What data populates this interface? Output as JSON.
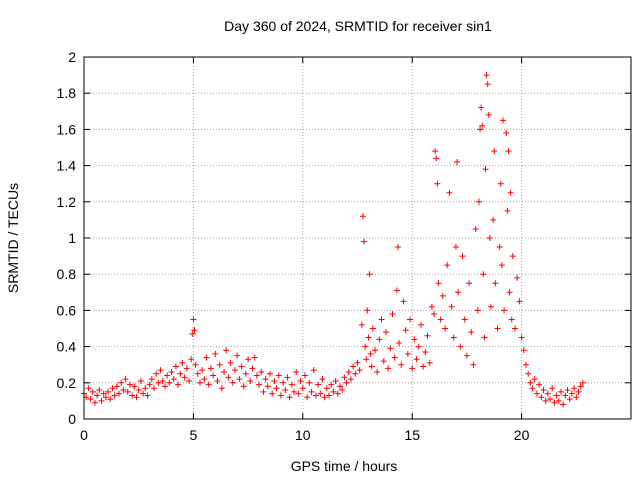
{
  "chart_data": {
    "type": "scatter",
    "title": "Day 360 of 2024, SRMTID for receiver sin1",
    "xlabel": "GPS time / hours",
    "ylabel": "SRMTID / TECUs",
    "xlim": [
      0,
      25
    ],
    "ylim": [
      0,
      2
    ],
    "xticks": [
      0,
      5,
      10,
      15,
      20
    ],
    "xtick_labels": [
      "0",
      "5",
      "10",
      "15",
      "20"
    ],
    "yticks": [
      0,
      0.2,
      0.4,
      0.6,
      0.8,
      1.0,
      1.2,
      1.4,
      1.6,
      1.8,
      2.0
    ],
    "ytick_labels": [
      "0",
      "0.2",
      "0.4",
      "0.6",
      "0.8",
      "1",
      "1.2",
      "1.4",
      "1.6",
      "1.8",
      "2"
    ],
    "grid": true,
    "marker": "plus",
    "color": "#ff0000",
    "series": [
      {
        "name": "sin1",
        "points": [
          [
            0.0,
            0.14
          ],
          [
            0.1,
            0.12
          ],
          [
            0.2,
            0.17
          ],
          [
            0.3,
            0.11
          ],
          [
            0.4,
            0.15
          ],
          [
            0.5,
            0.09
          ],
          [
            0.6,
            0.13
          ],
          [
            0.7,
            0.16
          ],
          [
            0.8,
            0.1
          ],
          [
            0.9,
            0.14
          ],
          [
            1.0,
            0.12
          ],
          [
            1.1,
            0.15
          ],
          [
            1.2,
            0.11
          ],
          [
            1.3,
            0.17
          ],
          [
            1.4,
            0.13
          ],
          [
            1.5,
            0.18
          ],
          [
            1.6,
            0.14
          ],
          [
            1.7,
            0.2
          ],
          [
            1.8,
            0.16
          ],
          [
            1.9,
            0.22
          ],
          [
            2.0,
            0.15
          ],
          [
            2.1,
            0.19
          ],
          [
            2.2,
            0.13
          ],
          [
            2.3,
            0.18
          ],
          [
            2.4,
            0.12
          ],
          [
            2.5,
            0.16
          ],
          [
            2.6,
            0.21
          ],
          [
            2.7,
            0.14
          ],
          [
            2.8,
            0.17
          ],
          [
            2.9,
            0.13
          ],
          [
            3.0,
            0.19
          ],
          [
            3.1,
            0.22
          ],
          [
            3.2,
            0.17
          ],
          [
            3.3,
            0.25
          ],
          [
            3.4,
            0.2
          ],
          [
            3.5,
            0.27
          ],
          [
            3.6,
            0.21
          ],
          [
            3.7,
            0.18
          ],
          [
            3.8,
            0.24
          ],
          [
            3.9,
            0.2
          ],
          [
            4.0,
            0.26
          ],
          [
            4.1,
            0.22
          ],
          [
            4.2,
            0.29
          ],
          [
            4.3,
            0.19
          ],
          [
            4.4,
            0.25
          ],
          [
            4.5,
            0.31
          ],
          [
            4.6,
            0.23
          ],
          [
            4.7,
            0.28
          ],
          [
            4.8,
            0.21
          ],
          [
            4.9,
            0.33
          ],
          [
            4.95,
            0.47
          ],
          [
            5.0,
            0.55
          ],
          [
            5.05,
            0.49
          ],
          [
            5.1,
            0.3
          ],
          [
            5.2,
            0.25
          ],
          [
            5.3,
            0.2
          ],
          [
            5.4,
            0.27
          ],
          [
            5.5,
            0.22
          ],
          [
            5.6,
            0.34
          ],
          [
            5.7,
            0.19
          ],
          [
            5.8,
            0.28
          ],
          [
            5.9,
            0.24
          ],
          [
            6.0,
            0.36
          ],
          [
            6.1,
            0.21
          ],
          [
            6.2,
            0.3
          ],
          [
            6.3,
            0.17
          ],
          [
            6.4,
            0.26
          ],
          [
            6.5,
            0.38
          ],
          [
            6.6,
            0.23
          ],
          [
            6.7,
            0.31
          ],
          [
            6.8,
            0.2
          ],
          [
            6.9,
            0.27
          ],
          [
            7.0,
            0.35
          ],
          [
            7.1,
            0.22
          ],
          [
            7.2,
            0.29
          ],
          [
            7.3,
            0.18
          ],
          [
            7.4,
            0.25
          ],
          [
            7.5,
            0.33
          ],
          [
            7.6,
            0.21
          ],
          [
            7.7,
            0.28
          ],
          [
            7.8,
            0.34
          ],
          [
            7.9,
            0.24
          ],
          [
            8.0,
            0.19
          ],
          [
            8.1,
            0.26
          ],
          [
            8.2,
            0.15
          ],
          [
            8.3,
            0.22
          ],
          [
            8.4,
            0.18
          ],
          [
            8.5,
            0.25
          ],
          [
            8.6,
            0.14
          ],
          [
            8.7,
            0.21
          ],
          [
            8.8,
            0.17
          ],
          [
            8.9,
            0.24
          ],
          [
            9.0,
            0.13
          ],
          [
            9.1,
            0.2
          ],
          [
            9.2,
            0.16
          ],
          [
            9.3,
            0.23
          ],
          [
            9.4,
            0.12
          ],
          [
            9.5,
            0.19
          ],
          [
            9.6,
            0.15
          ],
          [
            9.7,
            0.26
          ],
          [
            9.8,
            0.14
          ],
          [
            9.9,
            0.21
          ],
          [
            10.0,
            0.17
          ],
          [
            10.1,
            0.24
          ],
          [
            10.2,
            0.12
          ],
          [
            10.3,
            0.2
          ],
          [
            10.4,
            0.15
          ],
          [
            10.5,
            0.27
          ],
          [
            10.6,
            0.13
          ],
          [
            10.7,
            0.19
          ],
          [
            10.8,
            0.14
          ],
          [
            10.9,
            0.22
          ],
          [
            11.0,
            0.12
          ],
          [
            11.1,
            0.17
          ],
          [
            11.2,
            0.13
          ],
          [
            11.3,
            0.19
          ],
          [
            11.4,
            0.15
          ],
          [
            11.5,
            0.21
          ],
          [
            11.6,
            0.14
          ],
          [
            11.7,
            0.18
          ],
          [
            11.8,
            0.16
          ],
          [
            11.9,
            0.23
          ],
          [
            12.0,
            0.2
          ],
          [
            12.1,
            0.26
          ],
          [
            12.2,
            0.22
          ],
          [
            12.3,
            0.29
          ],
          [
            12.4,
            0.25
          ],
          [
            12.5,
            0.31
          ],
          [
            12.6,
            0.27
          ],
          [
            12.7,
            0.52
          ],
          [
            12.75,
            1.12
          ],
          [
            12.8,
            0.98
          ],
          [
            12.85,
            0.4
          ],
          [
            12.9,
            0.33
          ],
          [
            12.95,
            0.6
          ],
          [
            13.0,
            0.45
          ],
          [
            13.05,
            0.8
          ],
          [
            13.1,
            0.36
          ],
          [
            13.15,
            0.29
          ],
          [
            13.2,
            0.5
          ],
          [
            13.3,
            0.38
          ],
          [
            13.4,
            0.26
          ],
          [
            13.5,
            0.44
          ],
          [
            13.6,
            0.55
          ],
          [
            13.7,
            0.32
          ],
          [
            13.8,
            0.48
          ],
          [
            13.9,
            0.28
          ],
          [
            14.0,
            0.39
          ],
          [
            14.1,
            0.58
          ],
          [
            14.2,
            0.34
          ],
          [
            14.3,
            0.71
          ],
          [
            14.35,
            0.95
          ],
          [
            14.4,
            0.42
          ],
          [
            14.5,
            0.3
          ],
          [
            14.6,
            0.65
          ],
          [
            14.7,
            0.49
          ],
          [
            14.8,
            0.36
          ],
          [
            14.9,
            0.55
          ],
          [
            15.0,
            0.28
          ],
          [
            15.1,
            0.44
          ],
          [
            15.2,
            0.33
          ],
          [
            15.3,
            0.4
          ],
          [
            15.4,
            0.52
          ],
          [
            15.5,
            0.29
          ],
          [
            15.6,
            0.37
          ],
          [
            15.7,
            0.46
          ],
          [
            15.8,
            0.31
          ],
          [
            15.9,
            0.62
          ],
          [
            16.0,
            0.58
          ],
          [
            16.05,
            1.48
          ],
          [
            16.1,
            1.44
          ],
          [
            16.15,
            1.3
          ],
          [
            16.2,
            0.75
          ],
          [
            16.3,
            0.55
          ],
          [
            16.4,
            0.68
          ],
          [
            16.5,
            0.5
          ],
          [
            16.6,
            0.85
          ],
          [
            16.7,
            1.25
          ],
          [
            16.8,
            0.62
          ],
          [
            16.9,
            0.45
          ],
          [
            17.0,
            0.95
          ],
          [
            17.05,
            1.42
          ],
          [
            17.1,
            0.7
          ],
          [
            17.2,
            0.4
          ],
          [
            17.3,
            0.9
          ],
          [
            17.4,
            0.55
          ],
          [
            17.5,
            0.35
          ],
          [
            17.6,
            0.75
          ],
          [
            17.7,
            0.48
          ],
          [
            17.8,
            0.3
          ],
          [
            17.9,
            1.05
          ],
          [
            18.0,
            0.6
          ],
          [
            18.05,
            1.2
          ],
          [
            18.1,
            1.6
          ],
          [
            18.15,
            1.72
          ],
          [
            18.2,
            1.62
          ],
          [
            18.25,
            0.8
          ],
          [
            18.3,
            0.45
          ],
          [
            18.35,
            1.38
          ],
          [
            18.4,
            1.9
          ],
          [
            18.45,
            1.85
          ],
          [
            18.5,
            1.68
          ],
          [
            18.55,
            1.0
          ],
          [
            18.6,
            0.62
          ],
          [
            18.7,
            1.1
          ],
          [
            18.75,
            1.48
          ],
          [
            18.8,
            0.75
          ],
          [
            18.9,
            0.5
          ],
          [
            19.0,
            0.95
          ],
          [
            19.05,
            1.3
          ],
          [
            19.1,
            0.85
          ],
          [
            19.15,
            1.65
          ],
          [
            19.2,
            0.6
          ],
          [
            19.3,
            1.58
          ],
          [
            19.35,
            1.15
          ],
          [
            19.4,
            1.48
          ],
          [
            19.45,
            0.7
          ],
          [
            19.5,
            1.25
          ],
          [
            19.55,
            0.55
          ],
          [
            19.6,
            0.9
          ],
          [
            19.7,
            0.5
          ],
          [
            19.8,
            0.78
          ],
          [
            19.9,
            0.65
          ],
          [
            20.0,
            0.45
          ],
          [
            20.1,
            0.38
          ],
          [
            20.2,
            0.3
          ],
          [
            20.3,
            0.25
          ],
          [
            20.4,
            0.2
          ],
          [
            20.5,
            0.17
          ],
          [
            20.6,
            0.22
          ],
          [
            20.7,
            0.14
          ],
          [
            20.8,
            0.19
          ],
          [
            20.9,
            0.12
          ],
          [
            21.0,
            0.16
          ],
          [
            21.1,
            0.1
          ],
          [
            21.2,
            0.14
          ],
          [
            21.3,
            0.11
          ],
          [
            21.4,
            0.17
          ],
          [
            21.5,
            0.09
          ],
          [
            21.6,
            0.13
          ],
          [
            21.7,
            0.1
          ],
          [
            21.8,
            0.15
          ],
          [
            21.9,
            0.08
          ],
          [
            22.0,
            0.13
          ],
          [
            22.1,
            0.16
          ],
          [
            22.2,
            0.11
          ],
          [
            22.3,
            0.14
          ],
          [
            22.4,
            0.17
          ],
          [
            22.5,
            0.12
          ],
          [
            22.6,
            0.15
          ],
          [
            22.7,
            0.18
          ],
          [
            22.8,
            0.2
          ]
        ]
      }
    ]
  }
}
